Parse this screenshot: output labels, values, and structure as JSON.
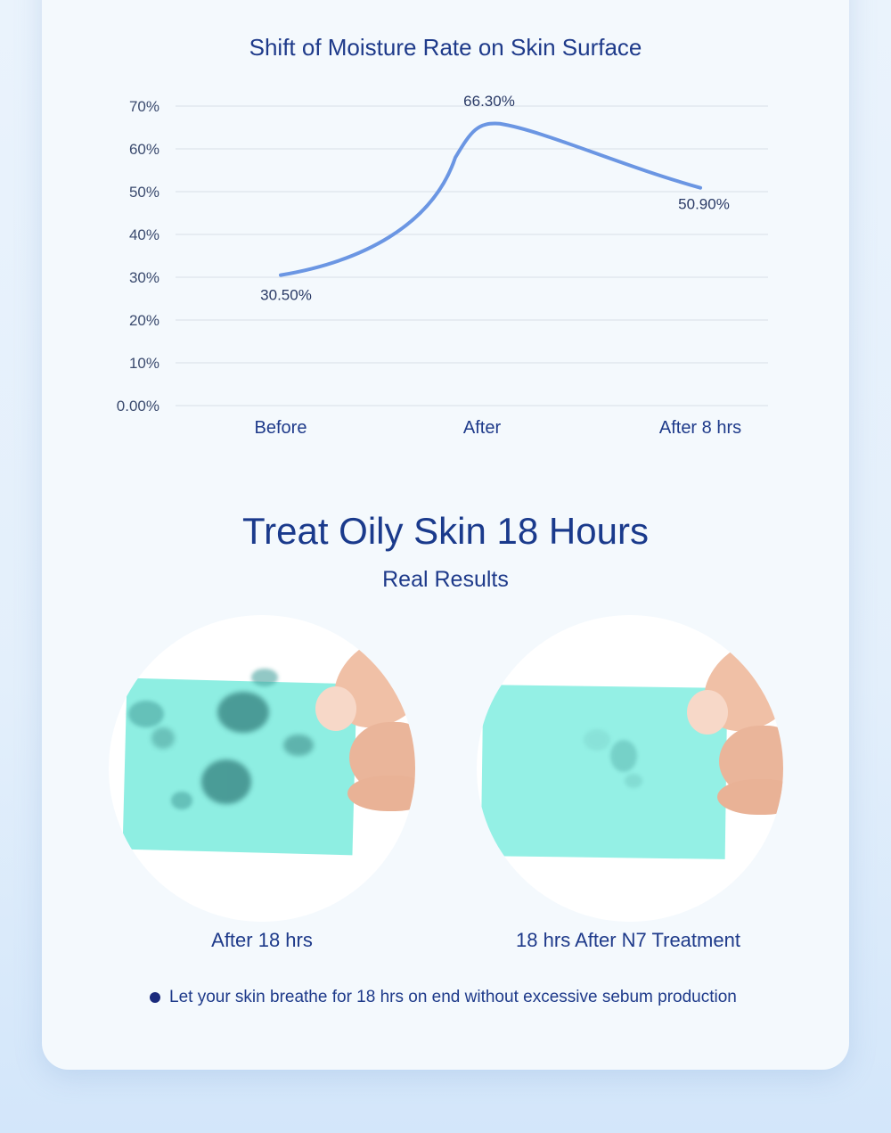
{
  "chart_data": {
    "type": "line",
    "title": "Shift of Moisture Rate on Skin Surface",
    "categories": [
      "Before",
      "After",
      "After 8 hrs"
    ],
    "series": [
      {
        "values": [
          30.5,
          66.3,
          50.9
        ],
        "labels": [
          "30.50%",
          "66.30%",
          "50.90%"
        ],
        "color": "#6b96e3"
      }
    ],
    "y_ticks": [
      "0.00%",
      "10%",
      "20%",
      "30%",
      "40%",
      "50%",
      "60%",
      "70%"
    ],
    "ylim": [
      0,
      70
    ],
    "grid": true,
    "colors": {
      "grid": "#d7dee8",
      "axis_text": "#3a4a6e",
      "label_text": "#2a3a66"
    }
  },
  "section": {
    "heading": "Treat Oily Skin 18 Hours",
    "subheading": "Real Results"
  },
  "photos": [
    {
      "caption": "After 18 hrs"
    },
    {
      "caption": "18 hrs After N7 Treatment"
    }
  ],
  "note": "Let your skin breathe for 18 hrs on end without excessive sebum production"
}
